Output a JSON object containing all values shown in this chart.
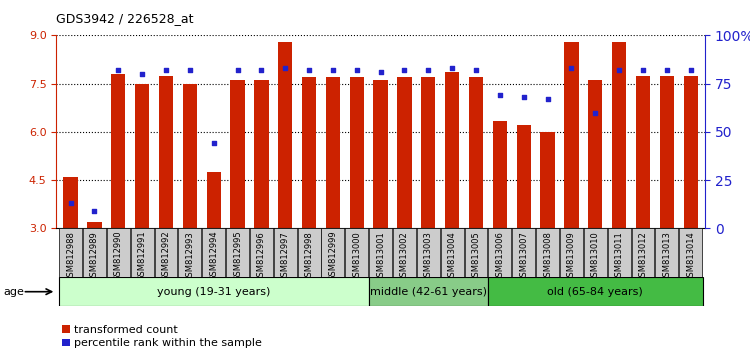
{
  "title": "GDS3942 / 226528_at",
  "samples": [
    "GSM812988",
    "GSM812989",
    "GSM812990",
    "GSM812991",
    "GSM812992",
    "GSM812993",
    "GSM812994",
    "GSM812995",
    "GSM812996",
    "GSM812997",
    "GSM812998",
    "GSM812999",
    "GSM813000",
    "GSM813001",
    "GSM813002",
    "GSM813003",
    "GSM813004",
    "GSM813005",
    "GSM813006",
    "GSM813007",
    "GSM813008",
    "GSM813009",
    "GSM813010",
    "GSM813011",
    "GSM813012",
    "GSM813013",
    "GSM813014"
  ],
  "red_values": [
    4.6,
    3.2,
    7.8,
    7.5,
    7.75,
    7.5,
    4.75,
    7.6,
    7.6,
    8.8,
    7.7,
    7.7,
    7.7,
    7.6,
    7.7,
    7.7,
    7.85,
    7.7,
    6.35,
    6.2,
    6.0,
    8.8,
    7.6,
    8.8,
    7.75,
    7.75,
    7.75
  ],
  "blue_values": [
    13,
    9,
    82,
    80,
    82,
    82,
    44,
    82,
    82,
    83,
    82,
    82,
    82,
    81,
    82,
    82,
    83,
    82,
    69,
    68,
    67,
    83,
    60,
    82,
    82,
    82,
    82
  ],
  "groups": [
    {
      "label": "young (19-31 years)",
      "start": 0,
      "end": 13,
      "color": "#ccffcc"
    },
    {
      "label": "middle (42-61 years)",
      "start": 13,
      "end": 18,
      "color": "#88cc88"
    },
    {
      "label": "old (65-84 years)",
      "start": 18,
      "end": 27,
      "color": "#44bb44"
    }
  ],
  "ylim_left": [
    3,
    9
  ],
  "ylim_right": [
    0,
    100
  ],
  "yticks_left": [
    3,
    4.5,
    6,
    7.5,
    9
  ],
  "yticks_right": [
    0,
    25,
    50,
    75,
    100
  ],
  "ytick_labels_right": [
    "0",
    "25",
    "50",
    "75",
    "100%"
  ],
  "bar_color": "#cc2200",
  "dot_color": "#2222cc",
  "grid_color": "black",
  "background_color": "white",
  "axis_color_left": "#cc2200",
  "axis_color_right": "#2222cc",
  "label_box_color": "#cccccc"
}
